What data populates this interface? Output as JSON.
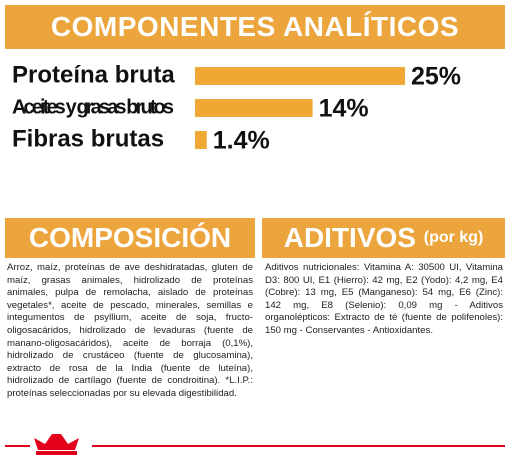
{
  "chart_data": {
    "type": "bar",
    "title": "COMPONENTES ANALÍTICOS",
    "categories": [
      "Proteína bruta",
      "Aceites y grasas brutos",
      "Fibras brutas"
    ],
    "values": [
      25,
      14,
      1.4
    ],
    "value_labels": [
      "25%",
      "14%",
      "1.4%"
    ],
    "color": "#efa834"
  },
  "composicion": {
    "title": "COMPOSICIÓN",
    "text": "Arroz, maíz, proteínas de ave deshidratadas, gluten de maíz, grasas animales, hidrolizado de proteínas animales, pulpa de remolacha, aislado de proteínas vegetales*, aceite de pescado, minerales, semillas e integumentos de psyllium, aceite de soja, fructo-oligosacáridos, hidrolizado de levaduras (fuente de manano-oligosacáridos), aceite de borraja (0,1%), hidrolizado de crustáceo (fuente de glucosamina), extracto de rosa de la India (fuente de luteína), hidrolizado de cartílago (fuente de condroitina). *L.I.P.: proteínas seleccionadas por su elevada digestibilidad."
  },
  "aditivos": {
    "title": "ADITIVOS",
    "subtitle": "(por kg)",
    "text": "Aditivos nutricionales: Vitamina A: 30500 UI, Vitamina D3: 800 UI, E1 (Hierro): 42 mg, E2 (Yodo): 4,2 mg, E4 (Cobre): 13 mg, E5 (Manganeso): 54 mg, E6 (Zinc): 142 mg, E8 (Selenio): 0,09 mg - Aditivos organolépticos: Extracto de té (fuente de polifenoles): 150 mg - Conservantes - Antioxidantes."
  }
}
